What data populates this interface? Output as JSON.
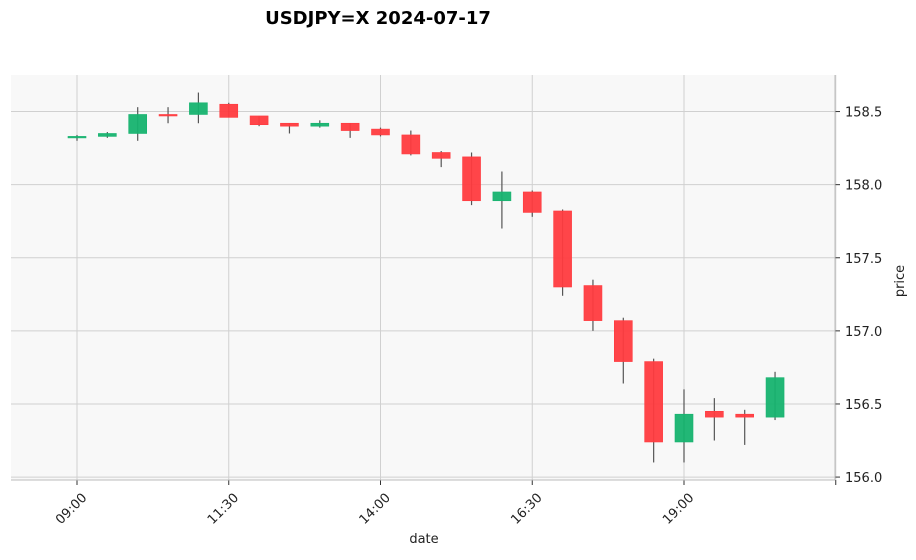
{
  "chart_data": {
    "type": "candlestick",
    "title": "USDJPY=X 2024-07-17",
    "xlabel": "date",
    "ylabel": "price",
    "y_axis_side": "right",
    "ylim": [
      155.98,
      158.75
    ],
    "yticks": [
      156.0,
      156.5,
      157.0,
      157.5,
      158.0,
      158.5
    ],
    "ytick_labels": [
      "156.0",
      "156.5",
      "157.0",
      "157.5",
      "158.0",
      "158.5"
    ],
    "xtick_labels": [
      "09:00",
      "11:30",
      "14:00",
      "16:30",
      "19:00",
      ""
    ],
    "xtick_indices": [
      0,
      5,
      10,
      15,
      20,
      25
    ],
    "grid": true,
    "up_color": "#16b36f",
    "down_color": "#ff3b3f",
    "background_color": "#f8f8f8",
    "candles": [
      {
        "time": "09:00",
        "open": 158.32,
        "high": 158.34,
        "low": 158.3,
        "close": 158.33
      },
      {
        "time": "09:30",
        "open": 158.33,
        "high": 158.36,
        "low": 158.32,
        "close": 158.35
      },
      {
        "time": "10:00",
        "open": 158.35,
        "high": 158.53,
        "low": 158.3,
        "close": 158.48
      },
      {
        "time": "10:30",
        "open": 158.48,
        "high": 158.53,
        "low": 158.42,
        "close": 158.47
      },
      {
        "time": "11:00",
        "open": 158.48,
        "high": 158.63,
        "low": 158.42,
        "close": 158.56
      },
      {
        "time": "11:30",
        "open": 158.55,
        "high": 158.56,
        "low": 158.46,
        "close": 158.46
      },
      {
        "time": "12:00",
        "open": 158.47,
        "high": 158.47,
        "low": 158.4,
        "close": 158.41
      },
      {
        "time": "12:30",
        "open": 158.42,
        "high": 158.42,
        "low": 158.35,
        "close": 158.4
      },
      {
        "time": "13:00",
        "open": 158.4,
        "high": 158.44,
        "low": 158.39,
        "close": 158.42
      },
      {
        "time": "13:30",
        "open": 158.42,
        "high": 158.42,
        "low": 158.32,
        "close": 158.37
      },
      {
        "time": "14:00",
        "open": 158.38,
        "high": 158.39,
        "low": 158.33,
        "close": 158.34
      },
      {
        "time": "14:30",
        "open": 158.34,
        "high": 158.37,
        "low": 158.2,
        "close": 158.21
      },
      {
        "time": "15:00",
        "open": 158.22,
        "high": 158.23,
        "low": 158.12,
        "close": 158.18
      },
      {
        "time": "15:30",
        "open": 158.19,
        "high": 158.22,
        "low": 157.86,
        "close": 157.89
      },
      {
        "time": "16:00",
        "open": 157.89,
        "high": 158.09,
        "low": 157.7,
        "close": 157.95
      },
      {
        "time": "16:30",
        "open": 157.95,
        "high": 157.96,
        "low": 157.78,
        "close": 157.81
      },
      {
        "time": "17:00",
        "open": 157.82,
        "high": 157.83,
        "low": 157.24,
        "close": 157.3
      },
      {
        "time": "17:30",
        "open": 157.31,
        "high": 157.35,
        "low": 157.0,
        "close": 157.07
      },
      {
        "time": "18:00",
        "open": 157.07,
        "high": 157.09,
        "low": 156.64,
        "close": 156.79
      },
      {
        "time": "18:30",
        "open": 156.79,
        "high": 156.81,
        "low": 156.1,
        "close": 156.24
      },
      {
        "time": "19:00",
        "open": 156.24,
        "high": 156.6,
        "low": 156.1,
        "close": 156.43
      },
      {
        "time": "19:30",
        "open": 156.45,
        "high": 156.54,
        "low": 156.25,
        "close": 156.41
      },
      {
        "time": "20:00",
        "open": 156.43,
        "high": 156.46,
        "low": 156.22,
        "close": 156.41
      },
      {
        "time": "20:30",
        "open": 156.41,
        "high": 156.72,
        "low": 156.39,
        "close": 156.68
      }
    ]
  }
}
